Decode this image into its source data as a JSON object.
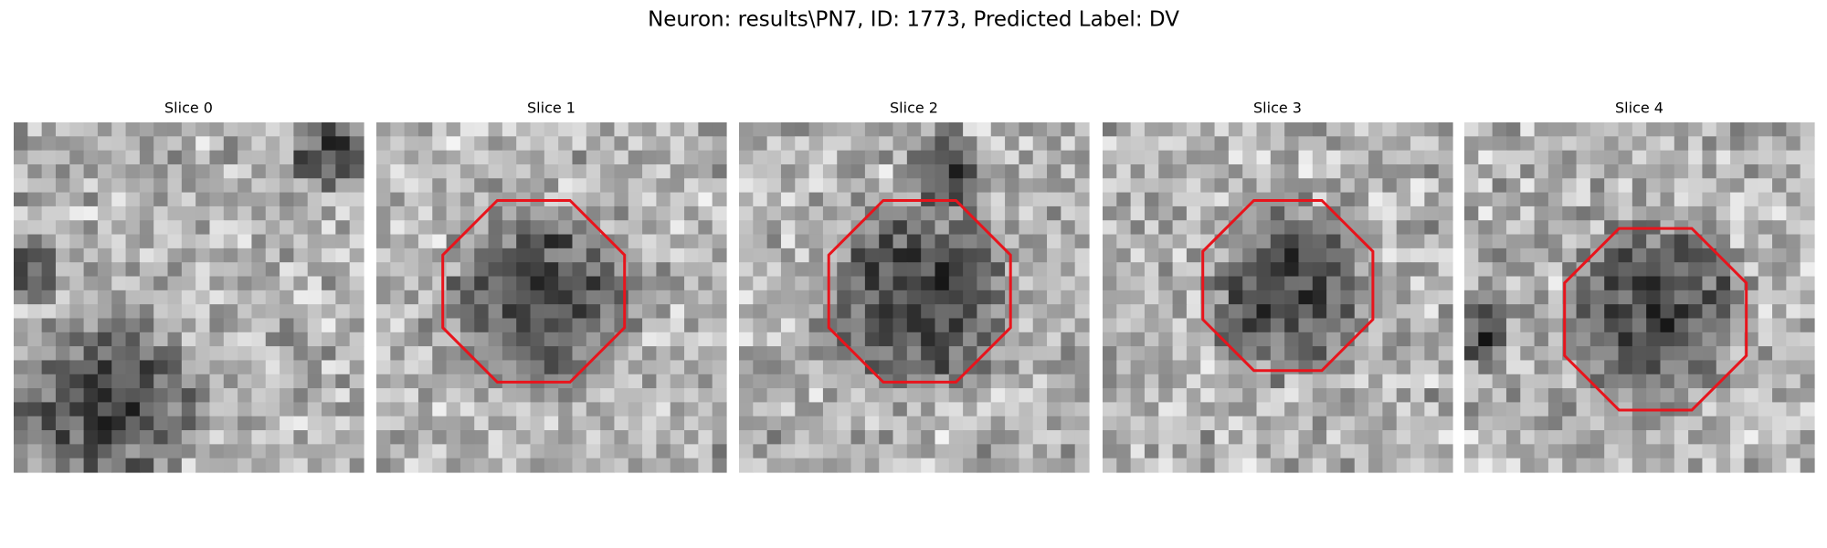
{
  "title": "Neuron: results\\PN7, ID: 1773, Predicted Label: DV",
  "panels": [
    {
      "title": "Slice 0"
    },
    {
      "title": "Slice 1"
    },
    {
      "title": "Slice 2"
    },
    {
      "title": "Slice 3"
    },
    {
      "title": "Slice 4"
    }
  ]
}
